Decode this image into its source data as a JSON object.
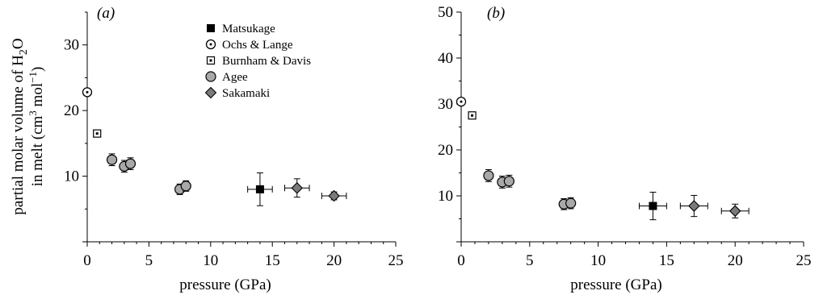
{
  "ylabel_line1": "partial molar volume of H",
  "ylabel_sub": "2",
  "ylabel_line1_tail": "O",
  "ylabel_line2_pre": "in melt (cm",
  "ylabel_sup1": "3",
  "ylabel_line2_mid": " mol",
  "ylabel_sup2": "−1",
  "ylabel_line2_post": ")",
  "legend": [
    {
      "label": "Matsukage",
      "marker": "filled-square"
    },
    {
      "label": "Ochs & Lange",
      "marker": "dotted-circle"
    },
    {
      "label": "Burnham & Davis",
      "marker": "dotted-square"
    },
    {
      "label": "Agee",
      "marker": "grey-circle"
    },
    {
      "label": "Sakamaki",
      "marker": "grey-diamond"
    }
  ],
  "colors": {
    "grey_fill": "#a8a8a8",
    "axis": "#000000"
  },
  "chart_data": [
    {
      "type": "scatter",
      "panel_label": "(a)",
      "xlabel": "pressure (GPa)",
      "xlim": [
        0,
        25
      ],
      "ylim": [
        0,
        35
      ],
      "xticks": [
        "0",
        "5",
        "10",
        "15",
        "20",
        "25"
      ],
      "yticks": [
        "10",
        "20",
        "30"
      ],
      "series": [
        {
          "name": "Matsukage",
          "marker": "filled-square",
          "points": [
            {
              "x": 14.0,
              "y": 8.0,
              "xerr": 1.0,
              "yerr": 2.5
            }
          ]
        },
        {
          "name": "Ochs & Lange",
          "marker": "dotted-circle",
          "points": [
            {
              "x": 0.0,
              "y": 22.8
            }
          ]
        },
        {
          "name": "Burnham & Davis",
          "marker": "dotted-square",
          "points": [
            {
              "x": 0.8,
              "y": 16.5
            }
          ]
        },
        {
          "name": "Agee",
          "marker": "grey-circle",
          "points": [
            {
              "x": 2.0,
              "y": 12.5,
              "yerr": 0.9
            },
            {
              "x": 3.0,
              "y": 11.5,
              "yerr": 0.9
            },
            {
              "x": 3.5,
              "y": 11.9,
              "yerr": 0.9
            },
            {
              "x": 7.5,
              "y": 8.0,
              "yerr": 0.8
            },
            {
              "x": 8.0,
              "y": 8.5,
              "yerr": 0.8
            }
          ]
        },
        {
          "name": "Sakamaki",
          "marker": "grey-diamond",
          "points": [
            {
              "x": 17.0,
              "y": 8.2,
              "xerr": 1.0,
              "yerr": 1.4
            },
            {
              "x": 20.0,
              "y": 7.0,
              "xerr": 1.0,
              "yerr": 0.6
            }
          ]
        }
      ]
    },
    {
      "type": "scatter",
      "panel_label": "(b)",
      "xlabel": "pressure (GPa)",
      "xlim": [
        0,
        25
      ],
      "ylim": [
        0,
        50
      ],
      "xticks": [
        "0",
        "5",
        "10",
        "15",
        "20",
        "25"
      ],
      "yticks": [
        "10",
        "20",
        "30",
        "40",
        "50"
      ],
      "series": [
        {
          "name": "Matsukage",
          "marker": "filled-square",
          "points": [
            {
              "x": 14.0,
              "y": 7.8,
              "xerr": 1.0,
              "yerr": 3.0
            }
          ]
        },
        {
          "name": "Ochs & Lange",
          "marker": "dotted-circle",
          "points": [
            {
              "x": 0.0,
              "y": 30.5
            }
          ]
        },
        {
          "name": "Burnham & Davis",
          "marker": "dotted-square",
          "points": [
            {
              "x": 0.8,
              "y": 27.5
            }
          ]
        },
        {
          "name": "Agee",
          "marker": "grey-circle",
          "points": [
            {
              "x": 2.0,
              "y": 14.4,
              "yerr": 1.3
            },
            {
              "x": 3.0,
              "y": 13.0,
              "yerr": 1.3
            },
            {
              "x": 3.5,
              "y": 13.2,
              "yerr": 1.3
            },
            {
              "x": 7.5,
              "y": 8.2,
              "yerr": 1.2
            },
            {
              "x": 8.0,
              "y": 8.4,
              "yerr": 1.2
            }
          ]
        },
        {
          "name": "Sakamaki",
          "marker": "grey-diamond",
          "points": [
            {
              "x": 17.0,
              "y": 7.8,
              "xerr": 1.0,
              "yerr": 2.3
            },
            {
              "x": 20.0,
              "y": 6.7,
              "xerr": 1.0,
              "yerr": 1.5
            }
          ]
        }
      ]
    }
  ]
}
